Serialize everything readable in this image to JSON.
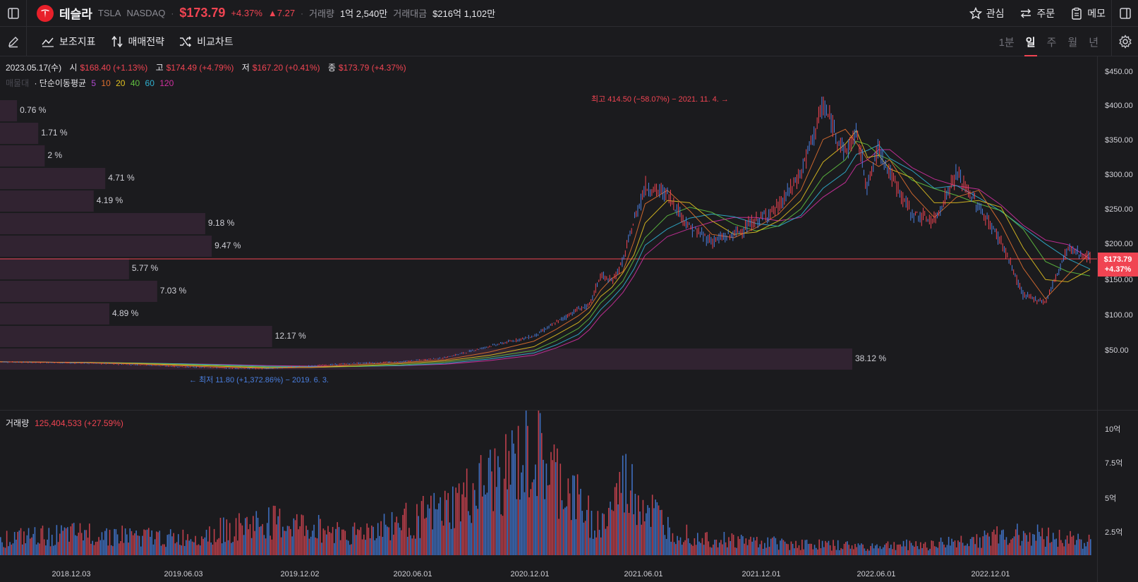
{
  "header": {
    "name": "테슬라",
    "symbol": "TSLA",
    "exchange": "NASDAQ",
    "price": "$173.79",
    "change_pct": "+4.37%",
    "change_abs": "▲7.27",
    "volume_label": "거래량",
    "volume_value": "1억 2,540만",
    "turnover_label": "거래대금",
    "turnover_value": "$216억 1,102만",
    "actions": {
      "watch": "관심",
      "order": "주문",
      "memo": "메모"
    },
    "brand_color": "#e8202a",
    "up_color": "#f04452",
    "down_color": "#4a7fe0"
  },
  "toolbar": {
    "indicators": "보조지표",
    "strategy": "매매전략",
    "compare": "비교차트",
    "periods": [
      "1분",
      "일",
      "주",
      "월",
      "년"
    ],
    "active_period": "일"
  },
  "ohlc": {
    "date": "2023.05.17(수)",
    "open_label": "시",
    "open": "$168.40 (+1.13%)",
    "high_label": "고",
    "high": "$174.49 (+4.79%)",
    "low_label": "저",
    "low": "$167.20 (+0.41%)",
    "close_label": "종",
    "close": "$173.79 (+4.37%)"
  },
  "ma_legend": {
    "vp_label": "매물대",
    "title": "· 단순이동평균",
    "periods": [
      {
        "n": "5",
        "color": "#b04ad0"
      },
      {
        "n": "10",
        "color": "#e07030"
      },
      {
        "n": "20",
        "color": "#e0c020"
      },
      {
        "n": "40",
        "color": "#60c040"
      },
      {
        "n": "60",
        "color": "#30b0d0"
      },
      {
        "n": "120",
        "color": "#d030a0"
      }
    ]
  },
  "annotations": {
    "high": "최고 414.50 (−58.07%) − 2021. 11. 4. →",
    "low": "← 최저 11.80 (+1,372.86%) − 2019. 6. 3."
  },
  "price_tag": {
    "price": "$173.79",
    "pct": "+4.37%"
  },
  "volume_panel": {
    "label": "거래량",
    "value": "125,404,533 (+27.59%)"
  },
  "chart_data": [
    {
      "type": "line",
      "title": "",
      "y_axis_labels": [
        "$450.00",
        "$400.00",
        "$350.00",
        "$300.00",
        "$250.00",
        "$200.00",
        "$150.00",
        "$100.00",
        "$50.00"
      ],
      "y_ticks": [
        450,
        400,
        350,
        300,
        250,
        200,
        150,
        100,
        50
      ],
      "ylim": [
        -60,
        475
      ],
      "x_axis_labels": [
        "2018.12.03",
        "2019.06.03",
        "2019.12.02",
        "2020.06.01",
        "2020.12.01",
        "2021.06.01",
        "2021.12.01",
        "2022.06.01",
        "2022.12.01"
      ],
      "x": [
        0,
        20,
        40,
        60,
        80,
        100,
        120,
        140,
        160,
        180,
        200,
        220,
        240,
        250,
        260,
        265,
        270,
        275,
        280,
        285,
        290,
        300,
        310,
        320,
        330,
        340,
        350,
        360,
        370,
        380,
        385,
        390,
        395,
        400,
        410,
        420,
        430,
        440,
        450,
        460,
        470,
        480,
        490
      ],
      "series": [
        {
          "values": [
            22,
            21,
            20,
            18,
            15,
            13,
            12,
            16,
            20,
            22,
            28,
            45,
            60,
            80,
            100,
            105,
            150,
            140,
            170,
            230,
            280,
            270,
            220,
            200,
            210,
            230,
            250,
            300,
            400,
            330,
            360,
            280,
            340,
            300,
            240,
            230,
            300,
            250,
            200,
            120,
            110,
            190,
            175
          ]
        }
      ],
      "price_line": 173.79,
      "volume_profile": [
        {
          "pct": 0.76,
          "label": "0.76 %"
        },
        {
          "pct": 1.71,
          "label": "1.71 %"
        },
        {
          "pct": 2.0,
          "label": "2 %"
        },
        {
          "pct": 4.71,
          "label": "4.71 %"
        },
        {
          "pct": 4.19,
          "label": "4.19 %"
        },
        {
          "pct": 9.18,
          "label": "9.18 %"
        },
        {
          "pct": 9.47,
          "label": "9.47 %"
        },
        {
          "pct": 5.77,
          "label": "5.77 %"
        },
        {
          "pct": 7.03,
          "label": "7.03 %"
        },
        {
          "pct": 4.89,
          "label": "4.89 %"
        },
        {
          "pct": 12.17,
          "label": "12.17 %"
        },
        {
          "pct": 38.12,
          "label": "38.12 %"
        }
      ]
    },
    {
      "type": "bar",
      "title": "",
      "y_axis_labels": [
        "10억",
        "7.5억",
        "5억",
        "2.5억"
      ],
      "y_ticks": [
        10,
        7.5,
        5,
        2.5
      ],
      "ylim": [
        0,
        10
      ],
      "x": [
        0,
        40,
        80,
        120,
        160,
        200,
        240,
        270,
        280,
        300,
        320,
        360,
        390,
        400,
        420,
        460,
        490
      ],
      "values": [
        1.5,
        2.0,
        1.5,
        3.0,
        2.0,
        4.0,
        9.0,
        2.5,
        6.5,
        2.5,
        1.5,
        1.0,
        0.8,
        0.9,
        1.0,
        2.0,
        1.25
      ]
    }
  ]
}
